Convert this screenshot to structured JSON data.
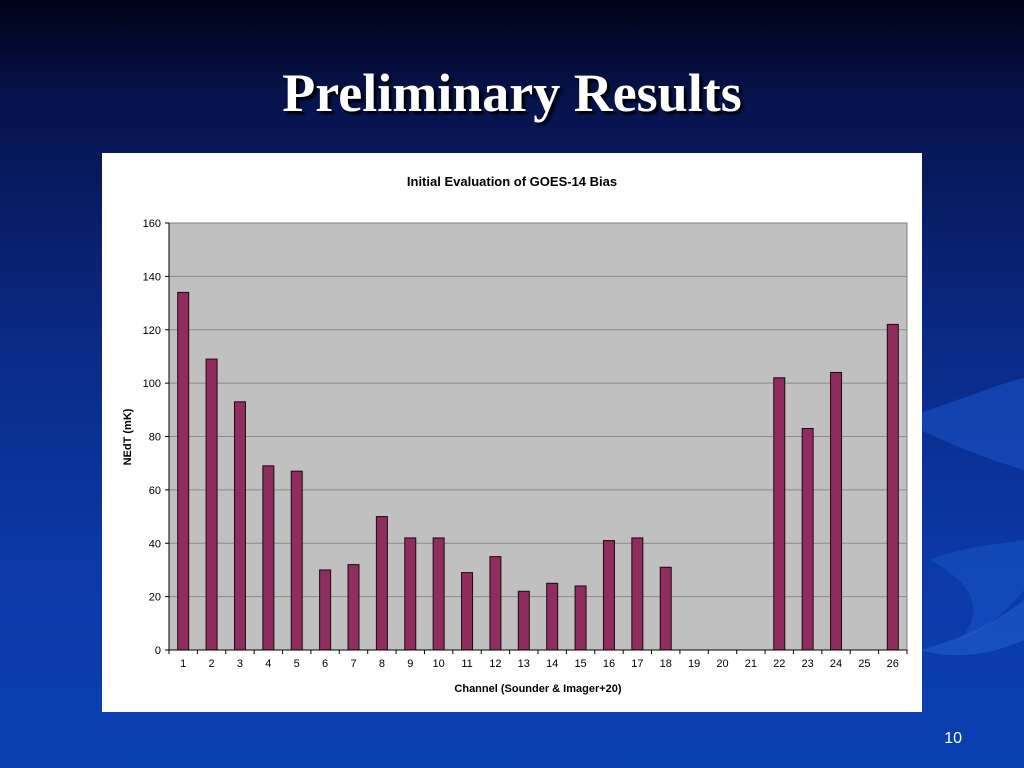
{
  "slide": {
    "title": "Preliminary Results",
    "page_number": "10"
  },
  "colors": {
    "bar_fill": "#8e2d5e",
    "bar_stroke": "#1a0a12",
    "plot_bg": "#c0c0c0",
    "gridline": "#8a8a8a"
  },
  "chart_data": {
    "type": "bar",
    "title": "Initial Evaluation of GOES-14 Bias",
    "xlabel": "Channel (Sounder & Imager+20)",
    "ylabel": "NEdT (mK)",
    "ylim": [
      0,
      160
    ],
    "yticks": [
      0,
      20,
      40,
      60,
      80,
      100,
      120,
      140,
      160
    ],
    "grid": true,
    "legend": "none",
    "categories": [
      "1",
      "2",
      "3",
      "4",
      "5",
      "6",
      "7",
      "8",
      "9",
      "10",
      "11",
      "12",
      "13",
      "14",
      "15",
      "16",
      "17",
      "18",
      "19",
      "20",
      "21",
      "22",
      "23",
      "24",
      "25",
      "26"
    ],
    "values": [
      134,
      109,
      93,
      69,
      67,
      30,
      32,
      50,
      42,
      42,
      29,
      35,
      22,
      25,
      24,
      41,
      42,
      31,
      null,
      null,
      null,
      102,
      83,
      104,
      null,
      122
    ]
  }
}
